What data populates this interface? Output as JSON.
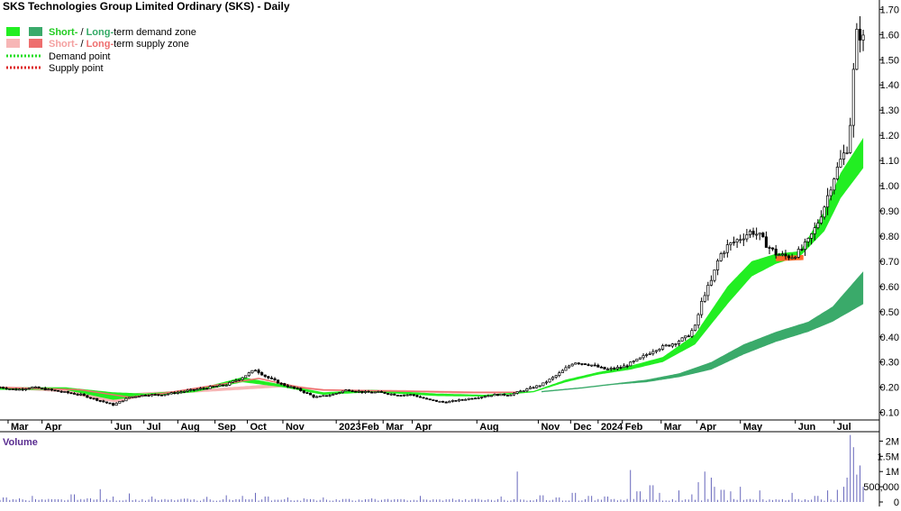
{
  "chart_data": {
    "type": "candlestick",
    "title": "SKS Technologies Group Limited Ordinary (SKS) - Daily",
    "legend": {
      "demand_zone": {
        "short": "Short-",
        "sep": " / ",
        "long": "Long-",
        "rest": "term demand zone"
      },
      "supply_zone": {
        "short": "Short-",
        "sep": " / ",
        "long": "Long-",
        "rest": "term supply zone"
      },
      "demand_point": "Demand point",
      "supply_point": "Supply point"
    },
    "colors": {
      "short_demand": "#22ee22",
      "long_demand": "#3aaa6a",
      "short_supply": "#f7b6b6",
      "long_supply": "#ee6e6e",
      "demand_point": "#22dd22",
      "supply_point": "#dd2222",
      "short_label": "#22cc22",
      "long_label": "#33aa66",
      "short_supply_label": "#f4a0a0",
      "long_supply_label": "#ee6e6e",
      "volume_bar": "#6666bb",
      "volume_label": "#5a2d91",
      "zone_orange": "#ff6a2a"
    },
    "y_axis": {
      "min": 0.07,
      "max": 1.73,
      "ticks": [
        "0.10",
        "0.20",
        "0.30",
        "0.40",
        "0.50",
        "0.60",
        "0.70",
        "0.80",
        "0.90",
        "1.00",
        "1.10",
        "1.20",
        "1.30",
        "1.40",
        "1.50",
        "1.60",
        "1.70"
      ]
    },
    "x_axis": {
      "labels": [
        {
          "label": "Mar",
          "day": 5
        },
        {
          "label": "Apr",
          "day": 26
        },
        {
          "label": "Jun",
          "day": 69
        },
        {
          "label": "Jul",
          "day": 89
        },
        {
          "label": "Aug",
          "day": 110
        },
        {
          "label": "Sep",
          "day": 133
        },
        {
          "label": "Oct",
          "day": 153
        },
        {
          "label": "Nov",
          "day": 175
        },
        {
          "label": "2023",
          "day": 208
        },
        {
          "label": "Feb",
          "day": 222
        },
        {
          "label": "Mar",
          "day": 237
        },
        {
          "label": "Apr",
          "day": 255
        },
        {
          "label": "Aug",
          "day": 295
        },
        {
          "label": "Nov",
          "day": 333
        },
        {
          "label": "Dec",
          "day": 353
        },
        {
          "label": "2024",
          "day": 370
        },
        {
          "label": "Feb",
          "day": 385
        },
        {
          "label": "Mar",
          "day": 409
        },
        {
          "label": "Apr",
          "day": 431
        },
        {
          "label": "May",
          "day": 458
        },
        {
          "label": "Jun",
          "day": 492
        },
        {
          "label": "Jul",
          "day": 516
        }
      ]
    },
    "price_path": [
      [
        0,
        0.2
      ],
      [
        10,
        0.19
      ],
      [
        20,
        0.2
      ],
      [
        30,
        0.19
      ],
      [
        40,
        0.18
      ],
      [
        50,
        0.17
      ],
      [
        60,
        0.15
      ],
      [
        70,
        0.13
      ],
      [
        80,
        0.16
      ],
      [
        90,
        0.17
      ],
      [
        100,
        0.17
      ],
      [
        110,
        0.18
      ],
      [
        120,
        0.19
      ],
      [
        130,
        0.2
      ],
      [
        140,
        0.21
      ],
      [
        150,
        0.24
      ],
      [
        158,
        0.27
      ],
      [
        165,
        0.24
      ],
      [
        175,
        0.21
      ],
      [
        185,
        0.19
      ],
      [
        195,
        0.16
      ],
      [
        205,
        0.17
      ],
      [
        215,
        0.19
      ],
      [
        225,
        0.18
      ],
      [
        235,
        0.18
      ],
      [
        245,
        0.17
      ],
      [
        255,
        0.17
      ],
      [
        265,
        0.15
      ],
      [
        275,
        0.14
      ],
      [
        285,
        0.15
      ],
      [
        295,
        0.16
      ],
      [
        305,
        0.17
      ],
      [
        315,
        0.17
      ],
      [
        325,
        0.19
      ],
      [
        335,
        0.21
      ],
      [
        345,
        0.25
      ],
      [
        355,
        0.3
      ],
      [
        365,
        0.29
      ],
      [
        375,
        0.27
      ],
      [
        385,
        0.28
      ],
      [
        395,
        0.31
      ],
      [
        405,
        0.35
      ],
      [
        415,
        0.37
      ],
      [
        425,
        0.4
      ],
      [
        430,
        0.44
      ],
      [
        435,
        0.56
      ],
      [
        440,
        0.62
      ],
      [
        445,
        0.72
      ],
      [
        450,
        0.76
      ],
      [
        455,
        0.78
      ],
      [
        460,
        0.8
      ],
      [
        465,
        0.82
      ],
      [
        470,
        0.8
      ],
      [
        475,
        0.76
      ],
      [
        480,
        0.73
      ],
      [
        485,
        0.72
      ],
      [
        490,
        0.72
      ],
      [
        495,
        0.74
      ],
      [
        500,
        0.78
      ],
      [
        505,
        0.84
      ],
      [
        510,
        0.92
      ],
      [
        515,
        1.02
      ],
      [
        520,
        1.1
      ],
      [
        524,
        1.15
      ],
      [
        526,
        1.25
      ],
      [
        528,
        1.45
      ],
      [
        530,
        1.6
      ],
      [
        532,
        1.6
      ],
      [
        534,
        1.58
      ]
    ],
    "short_zone": [
      [
        0,
        0.19,
        0.2
      ],
      [
        40,
        0.19,
        0.2
      ],
      [
        70,
        0.15,
        0.18
      ],
      [
        90,
        0.165,
        0.175
      ],
      [
        120,
        0.18,
        0.19
      ],
      [
        150,
        0.22,
        0.24
      ],
      [
        175,
        0.2,
        0.21
      ],
      [
        200,
        0.17,
        0.18
      ],
      [
        230,
        0.18,
        0.19
      ],
      [
        270,
        0.165,
        0.175
      ],
      [
        300,
        0.163,
        0.17
      ],
      [
        330,
        0.18,
        0.185
      ],
      [
        350,
        0.22,
        0.23
      ],
      [
        370,
        0.25,
        0.26
      ],
      [
        390,
        0.27,
        0.285
      ],
      [
        410,
        0.3,
        0.32
      ],
      [
        430,
        0.37,
        0.41
      ],
      [
        450,
        0.53,
        0.6
      ],
      [
        465,
        0.64,
        0.7
      ],
      [
        480,
        0.69,
        0.73
      ],
      [
        495,
        0.72,
        0.74
      ],
      [
        510,
        0.82,
        0.9
      ],
      [
        520,
        0.95,
        1.05
      ],
      [
        534,
        1.07,
        1.19
      ]
    ],
    "long_zone": [
      [
        335,
        0.18,
        0.185
      ],
      [
        360,
        0.195,
        0.2
      ],
      [
        380,
        0.21,
        0.215
      ],
      [
        400,
        0.22,
        0.23
      ],
      [
        420,
        0.24,
        0.255
      ],
      [
        440,
        0.27,
        0.3
      ],
      [
        460,
        0.33,
        0.37
      ],
      [
        480,
        0.38,
        0.42
      ],
      [
        500,
        0.42,
        0.46
      ],
      [
        515,
        0.46,
        0.52
      ],
      [
        534,
        0.53,
        0.66
      ]
    ],
    "supply_short_zone": [
      [
        0,
        0.195,
        0.2
      ],
      [
        40,
        0.18,
        0.2
      ],
      [
        60,
        0.15,
        0.18
      ],
      [
        72,
        0.14,
        0.17
      ],
      [
        90,
        0.165,
        0.18
      ],
      [
        110,
        0.175,
        0.185
      ],
      [
        175,
        0.2,
        0.215
      ],
      [
        200,
        0.185,
        0.19
      ],
      [
        240,
        0.185,
        0.19
      ],
      [
        280,
        0.175,
        0.185
      ],
      [
        310,
        0.175,
        0.18
      ]
    ],
    "supply_long_line": [
      [
        0,
        0.2
      ],
      [
        50,
        0.19
      ],
      [
        80,
        0.16
      ],
      [
        100,
        0.175
      ],
      [
        160,
        0.235
      ],
      [
        185,
        0.2
      ],
      [
        200,
        0.19
      ],
      [
        240,
        0.185
      ],
      [
        290,
        0.18
      ],
      [
        320,
        0.18
      ]
    ],
    "orange_zone": [
      [
        480,
        0.7,
        0.72
      ],
      [
        497,
        0.705,
        0.725
      ]
    ],
    "volume": {
      "label": "Volume",
      "ticks": [
        {
          "label": "0",
          "value": 0
        },
        {
          "label": "500,000",
          "value": 500000
        },
        {
          "label": "1M",
          "value": 1000000
        },
        {
          "label": "1.5M",
          "value": 1500000
        },
        {
          "label": "2M",
          "value": 2000000
        }
      ],
      "max": 2250000,
      "spikes": [
        [
          3,
          150000
        ],
        [
          12,
          120000
        ],
        [
          20,
          200000
        ],
        [
          30,
          100000
        ],
        [
          45,
          250000
        ],
        [
          55,
          120000
        ],
        [
          62,
          420000
        ],
        [
          70,
          180000
        ],
        [
          80,
          280000
        ],
        [
          94,
          180000
        ],
        [
          100,
          80000
        ],
        [
          115,
          110000
        ],
        [
          128,
          170000
        ],
        [
          140,
          220000
        ],
        [
          150,
          200000
        ],
        [
          158,
          300000
        ],
        [
          165,
          180000
        ],
        [
          178,
          150000
        ],
        [
          188,
          120000
        ],
        [
          200,
          150000
        ],
        [
          215,
          100000
        ],
        [
          230,
          120000
        ],
        [
          245,
          90000
        ],
        [
          260,
          200000
        ],
        [
          280,
          110000
        ],
        [
          295,
          100000
        ],
        [
          310,
          180000
        ],
        [
          320,
          1000000
        ],
        [
          335,
          220000
        ],
        [
          345,
          150000
        ],
        [
          355,
          300000
        ],
        [
          365,
          200000
        ],
        [
          375,
          180000
        ],
        [
          390,
          1050000
        ],
        [
          395,
          350000
        ],
        [
          403,
          550000
        ],
        [
          408,
          300000
        ],
        [
          420,
          380000
        ],
        [
          428,
          250000
        ],
        [
          432,
          650000
        ],
        [
          436,
          1000000
        ],
        [
          440,
          800000
        ],
        [
          442,
          500000
        ],
        [
          447,
          400000
        ],
        [
          452,
          350000
        ],
        [
          458,
          500000
        ],
        [
          470,
          380000
        ],
        [
          490,
          300000
        ],
        [
          505,
          200000
        ],
        [
          512,
          380000
        ],
        [
          518,
          400000
        ],
        [
          522,
          500000
        ],
        [
          524,
          800000
        ],
        [
          526,
          2200000
        ],
        [
          528,
          1800000
        ],
        [
          530,
          900000
        ],
        [
          532,
          1200000
        ],
        [
          534,
          500000
        ]
      ]
    }
  }
}
